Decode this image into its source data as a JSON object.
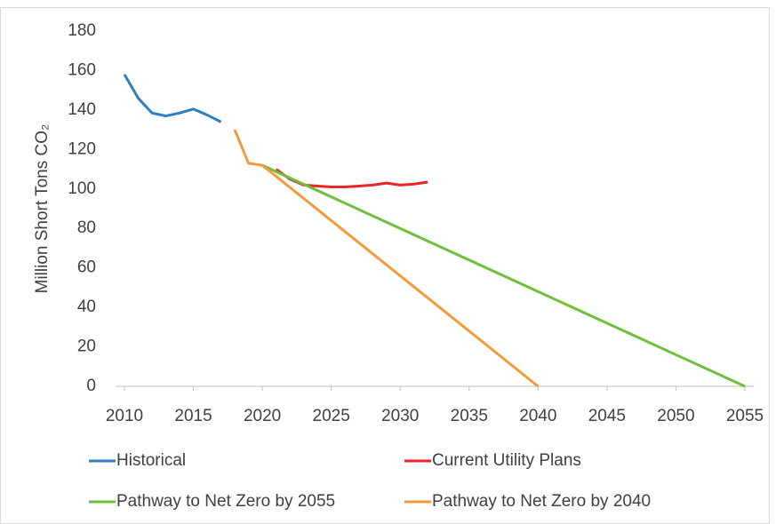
{
  "chart_data": {
    "type": "line",
    "y_label": "Million Short Tons CO₂",
    "xlim": [
      2010,
      2055
    ],
    "xticks": [
      2010,
      2015,
      2020,
      2025,
      2030,
      2035,
      2040,
      2045,
      2050,
      2055
    ],
    "ylim": [
      0,
      180
    ],
    "yticks": [
      0,
      20,
      40,
      60,
      80,
      100,
      120,
      140,
      160,
      180
    ],
    "grid": false,
    "legend": "bottom",
    "series": [
      {
        "name": "Historical",
        "color": "#2e7fbf",
        "x": [
          2010,
          2011,
          2012,
          2013,
          2014,
          2015,
          2016,
          2017
        ],
        "values": [
          158,
          146,
          138.5,
          137,
          138.5,
          140.5,
          137.5,
          134
        ]
      },
      {
        "name": "Current Utility Plans",
        "color": "#e8262a",
        "x": [
          2021,
          2022,
          2023,
          2024,
          2025,
          2026,
          2027,
          2028,
          2029,
          2030,
          2031,
          2032
        ],
        "values": [
          110,
          105,
          102,
          101.5,
          101,
          101,
          101.5,
          102,
          103,
          102,
          102.5,
          103.5
        ]
      },
      {
        "name": "Pathway to Net Zero by 2055",
        "color": "#6fbf3a",
        "x": [
          2020,
          2055
        ],
        "values": [
          112,
          0
        ]
      },
      {
        "name": "Pathway to Net Zero by 2040",
        "color": "#f29a3c",
        "x": [
          2018,
          2019,
          2020,
          2040
        ],
        "values": [
          130,
          113,
          112,
          0
        ]
      }
    ]
  }
}
